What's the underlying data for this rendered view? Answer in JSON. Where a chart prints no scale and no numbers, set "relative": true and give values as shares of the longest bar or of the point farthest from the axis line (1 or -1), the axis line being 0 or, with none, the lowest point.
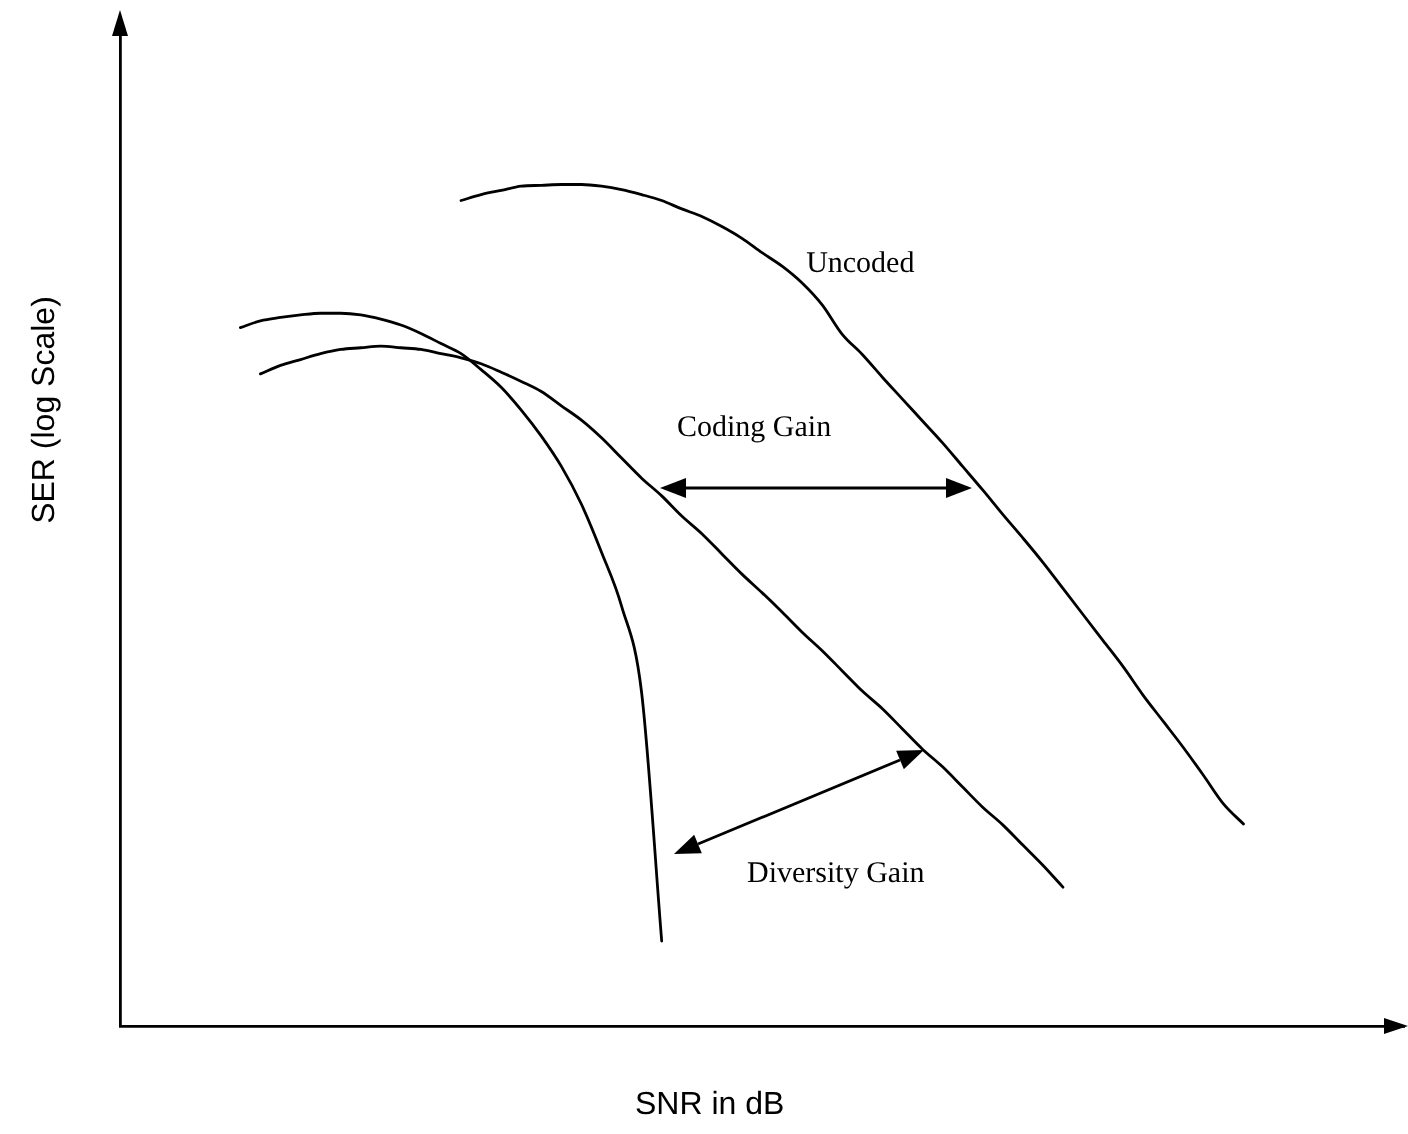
{
  "chart_data": {
    "type": "line",
    "relative": true,
    "xlabel": "SNR in dB",
    "ylabel": "SER (log Scale)",
    "tick_labels": false,
    "marker": "none",
    "line_style": "solid",
    "annotations": [
      "Coding Gain",
      "Diversity Gain"
    ],
    "categories": [
      null,
      null,
      null,
      null,
      null,
      null,
      null,
      null,
      null,
      null,
      null,
      null,
      null,
      null,
      null,
      null,
      null,
      null,
      null,
      null,
      null,
      null,
      null,
      null,
      null,
      null,
      null,
      null,
      null,
      null,
      null,
      null,
      null,
      null,
      null,
      null,
      null,
      null,
      null,
      null,
      null,
      null,
      null,
      null,
      null,
      null,
      null,
      null,
      null,
      null,
      null,
      null,
      null,
      null,
      null,
      null,
      null,
      null,
      null,
      null,
      null,
      null,
      null,
      null,
      null
    ],
    "series": [
      {
        "name": "Uncoded",
        "color": "#000000",
        "values": [
          null,
          null,
          null,
          null,
          null,
          null,
          null,
          null,
          null,
          null,
          null,
          null,
          null,
          null,
          null,
          null,
          null,
          0.981,
          0.988,
          0.993,
          0.998,
          0.999,
          1.0,
          1.0,
          0.998,
          0.994,
          0.988,
          0.981,
          0.971,
          0.962,
          0.95,
          0.936,
          0.919,
          0.903,
          0.883,
          0.857,
          0.822,
          0.798,
          0.771,
          0.745,
          0.719,
          0.693,
          0.665,
          0.637,
          0.608,
          0.58,
          0.551,
          0.52,
          0.489,
          0.458,
          0.427,
          0.393,
          0.362,
          0.331,
          0.298,
          0.264,
          0.24,
          null,
          null,
          null,
          null,
          null,
          null,
          null,
          null
        ]
      },
      {
        "color": "#000000",
        "values": [
          null,
          null,
          null,
          null,
          null,
          null,
          null,
          0.775,
          0.785,
          0.792,
          0.799,
          0.804,
          0.806,
          0.808,
          0.806,
          0.804,
          0.799,
          0.794,
          0.787,
          0.777,
          0.766,
          0.754,
          0.737,
          0.72,
          0.699,
          0.675,
          0.651,
          0.63,
          0.606,
          0.585,
          0.561,
          0.537,
          0.515,
          0.492,
          0.468,
          0.446,
          0.422,
          0.398,
          0.377,
          0.353,
          0.329,
          0.308,
          0.284,
          0.26,
          0.239,
          0.215,
          0.191,
          0.165,
          null,
          null,
          null,
          null,
          null,
          null,
          null,
          null,
          null,
          null,
          null,
          null,
          null,
          null,
          null,
          null,
          null
        ]
      },
      {
        "color": "#000000",
        "values": [
          null,
          null,
          null,
          null,
          null,
          null,
          0.83,
          0.838,
          0.842,
          0.845,
          0.847,
          0.847,
          0.845,
          0.84,
          0.833,
          0.823,
          0.811,
          0.799,
          0.78,
          0.759,
          0.732,
          0.701,
          0.665,
          0.62,
          0.563,
          0.499,
          0.396,
          0.101,
          null,
          null,
          null,
          null,
          null,
          null,
          null,
          null,
          null,
          null,
          null,
          null,
          null,
          null,
          null,
          null,
          null,
          null,
          null,
          null,
          null,
          null,
          null,
          null,
          null,
          null,
          null,
          null,
          null,
          null,
          null,
          null,
          null,
          null,
          null,
          null,
          null
        ]
      }
    ]
  }
}
